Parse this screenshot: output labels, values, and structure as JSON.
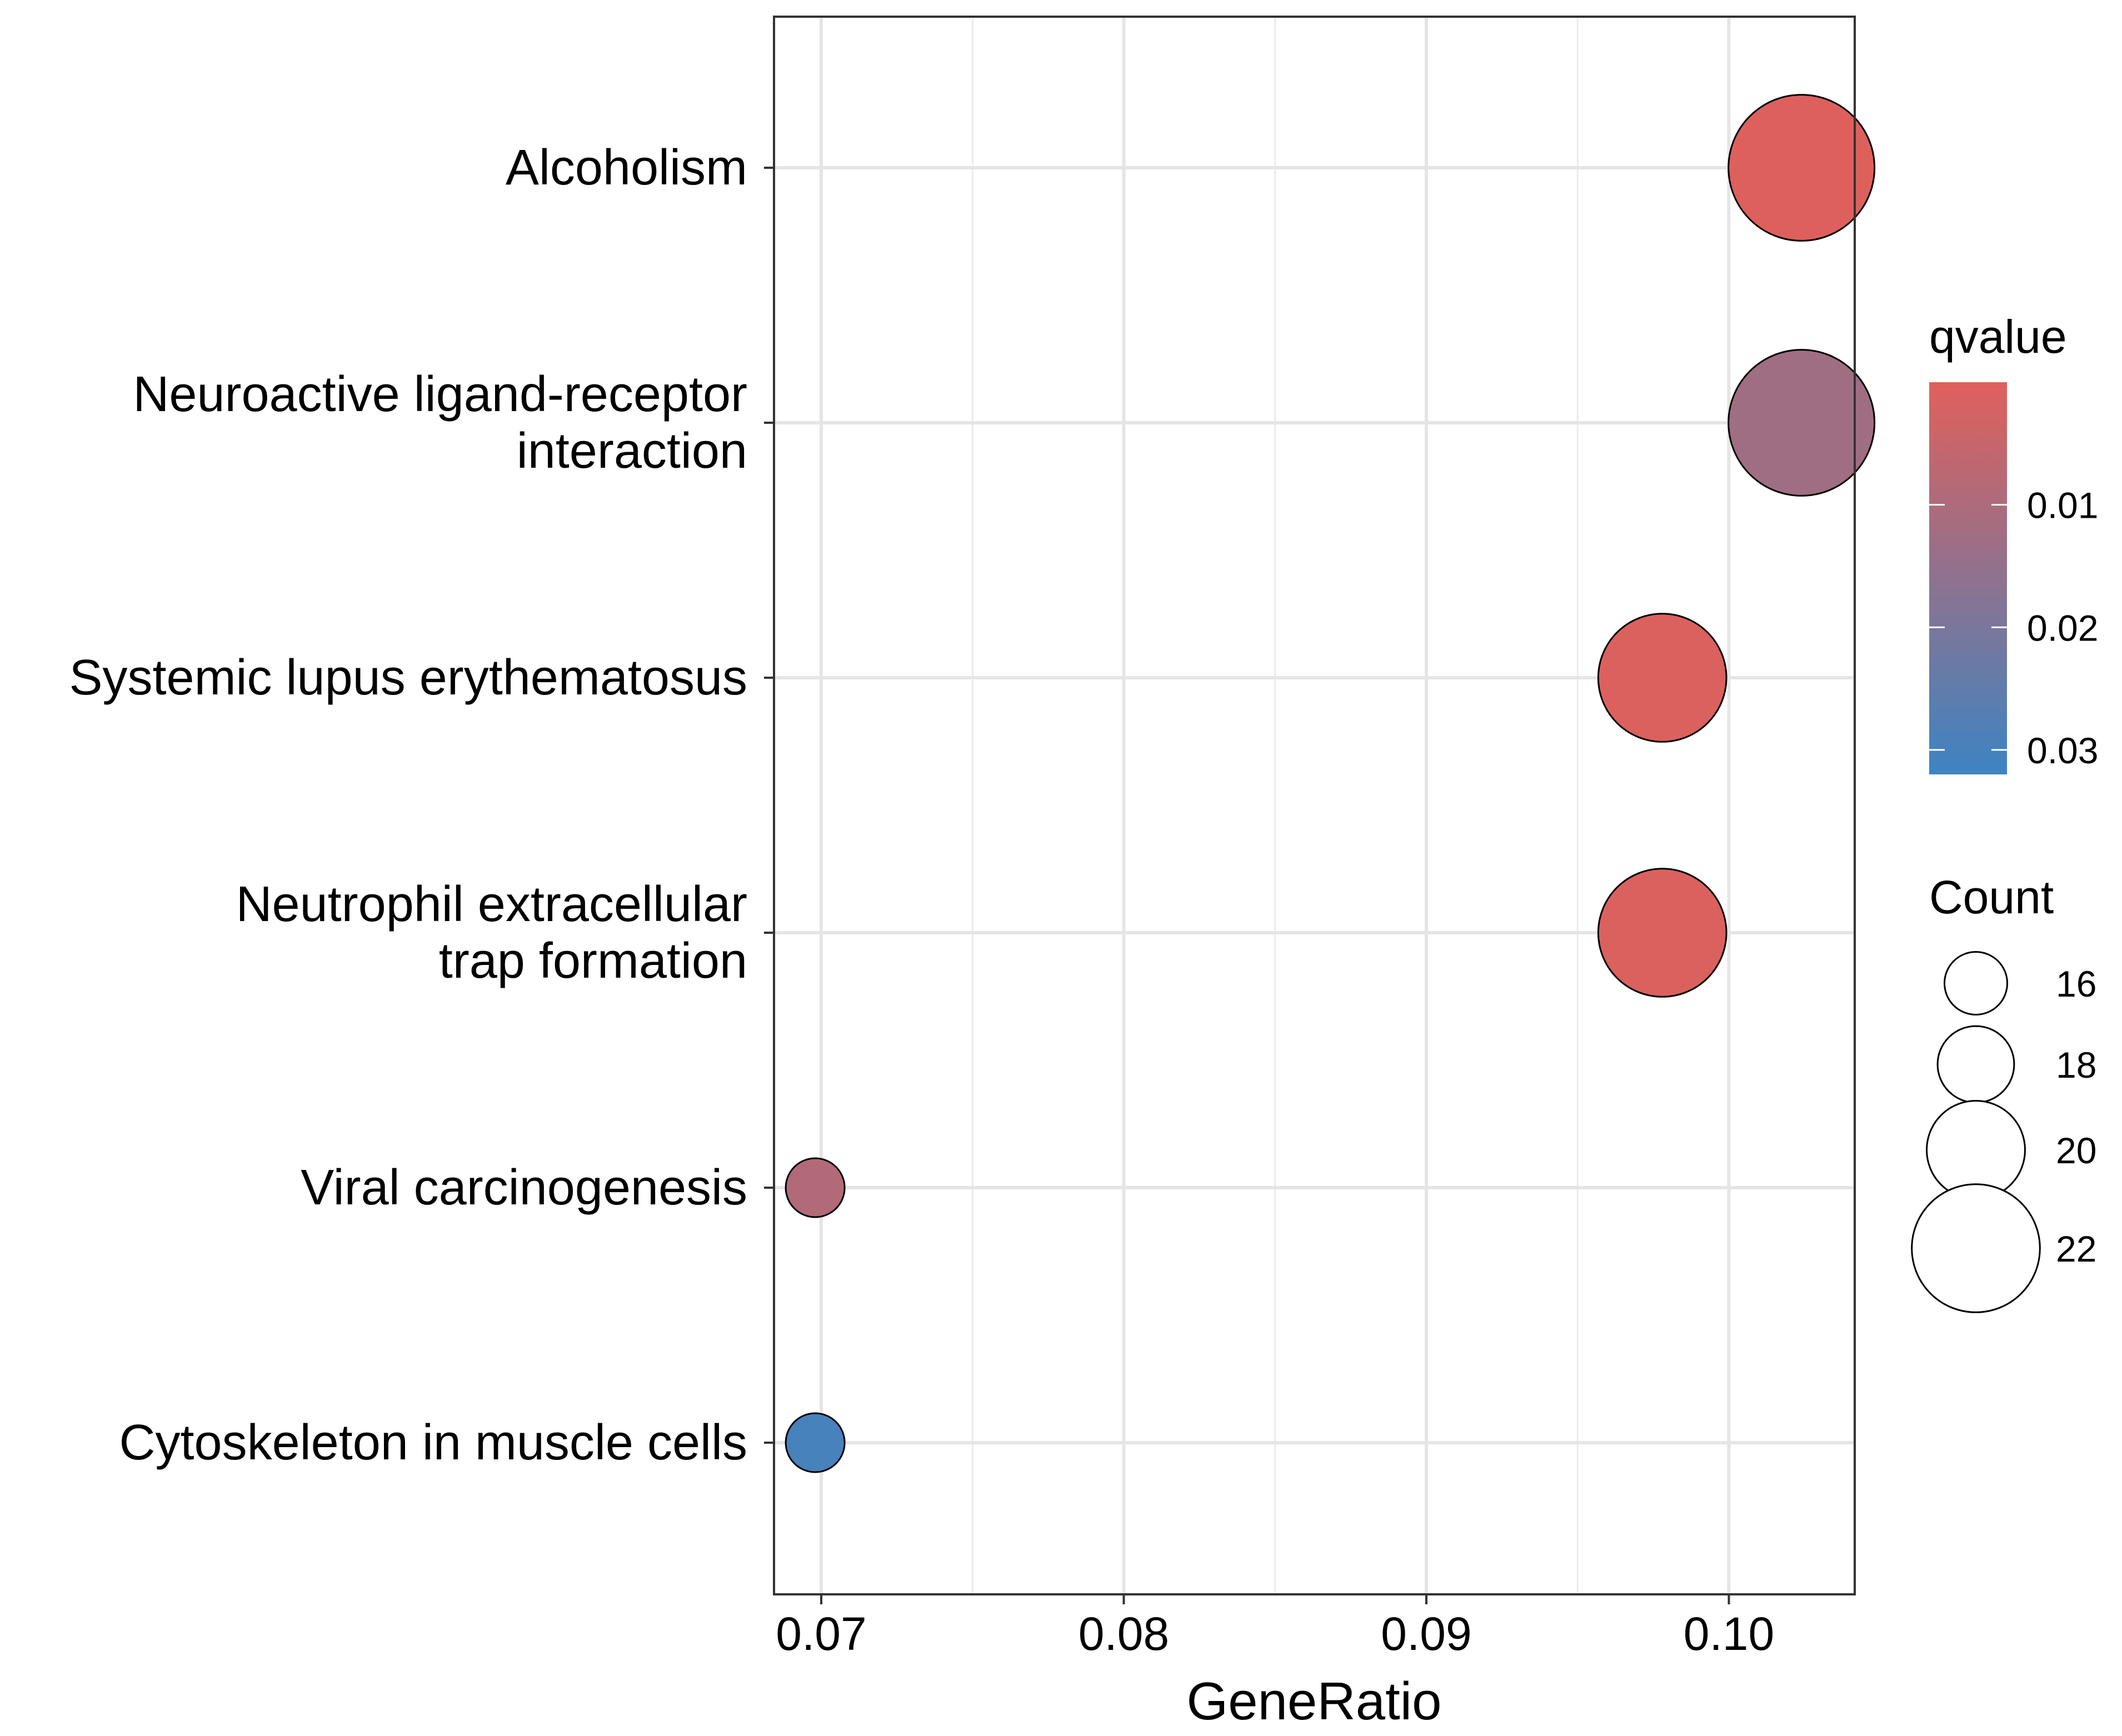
{
  "chart_data": {
    "type": "scatter",
    "title": "",
    "xlabel": "GeneRatio",
    "ylabel": "",
    "xlim": [
      0.0683,
      0.1042
    ],
    "x_ticks": [
      {
        "value": 0.07,
        "label": "0.07"
      },
      {
        "value": 0.08,
        "label": "0.08"
      },
      {
        "value": 0.09,
        "label": "0.09"
      },
      {
        "value": 0.1,
        "label": "0.10"
      }
    ],
    "grid": true,
    "categories": [
      {
        "lines": [
          "Alcoholism"
        ]
      },
      {
        "lines": [
          "Neuroactive ligand-receptor",
          "interaction"
        ]
      },
      {
        "lines": [
          "Systemic lupus erythematosus"
        ]
      },
      {
        "lines": [
          "Neutrophil extracellular",
          "trap formation"
        ]
      },
      {
        "lines": [
          "Viral carcinogenesis"
        ]
      },
      {
        "lines": [
          "Cytoskeleton in muscle cells"
        ]
      }
    ],
    "points": [
      {
        "term": "Alcoholism",
        "gene_ratio": 0.1024,
        "count": 23,
        "qvalue": 0.0003
      },
      {
        "term": "Neuroactive ligand-receptor interaction",
        "gene_ratio": 0.1024,
        "count": 23,
        "qvalue": 0.0125
      },
      {
        "term": "Systemic lupus erythematosus",
        "gene_ratio": 0.0978,
        "count": 22,
        "qvalue": 0.001
      },
      {
        "term": "Neutrophil extracellular trap formation",
        "gene_ratio": 0.0978,
        "count": 22,
        "qvalue": 0.001
      },
      {
        "term": "Viral carcinogenesis",
        "gene_ratio": 0.0698,
        "count": 15,
        "qvalue": 0.009
      },
      {
        "term": "Cytoskeleton in muscle cells",
        "gene_ratio": 0.0698,
        "count": 15,
        "qvalue": 0.03
      }
    ],
    "color_legend": {
      "title": "qvalue",
      "range": [
        0.0,
        0.032
      ],
      "low_color": "#E0605B",
      "high_color": "#3D84C2",
      "ticks": [
        {
          "value": 0.01,
          "label": "0.01"
        },
        {
          "value": 0.02,
          "label": "0.02"
        },
        {
          "value": 0.03,
          "label": "0.03"
        }
      ]
    },
    "size_legend": {
      "title": "Count",
      "entries": [
        {
          "value": 16,
          "label": "16"
        },
        {
          "value": 18,
          "label": "18"
        },
        {
          "value": 20,
          "label": "20"
        },
        {
          "value": 22,
          "label": "22"
        }
      ]
    },
    "legend_position": "right"
  }
}
